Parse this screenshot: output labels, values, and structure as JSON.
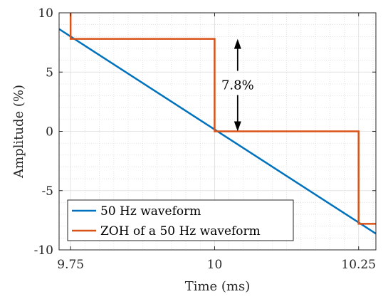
{
  "chart_data": {
    "type": "line",
    "xlabel": "Time (ms)",
    "ylabel": "Amplitude (%)",
    "xlim": [
      9.73,
      10.28
    ],
    "ylim": [
      -10,
      10
    ],
    "xticks": [
      9.75,
      10,
      10.25
    ],
    "xtick_labels": [
      "9.75",
      "10",
      "10.25"
    ],
    "yticks": [
      -10,
      -5,
      0,
      5,
      10
    ],
    "ytick_labels": [
      "-10",
      "-5",
      "0",
      "5",
      "10"
    ],
    "grid": true,
    "minor_grid": true,
    "legend_position": "bottom-left",
    "series": [
      {
        "name": "50 Hz waveform",
        "color": "#0072BD",
        "x": [
          9.73,
          10.28
        ],
        "y": [
          8.63,
          -8.63
        ]
      },
      {
        "name": "ZOH of a 50 Hz waveform",
        "color": "#D95319",
        "x": [
          9.75,
          9.75,
          10.0,
          10.0,
          10.25,
          10.25,
          10.28
        ],
        "y": [
          10,
          7.8,
          7.8,
          0,
          0,
          -7.8,
          -7.8
        ]
      }
    ],
    "annotation": {
      "text": "7.8%",
      "x": 10.04,
      "y_from": 0,
      "y_to": 7.8
    }
  }
}
